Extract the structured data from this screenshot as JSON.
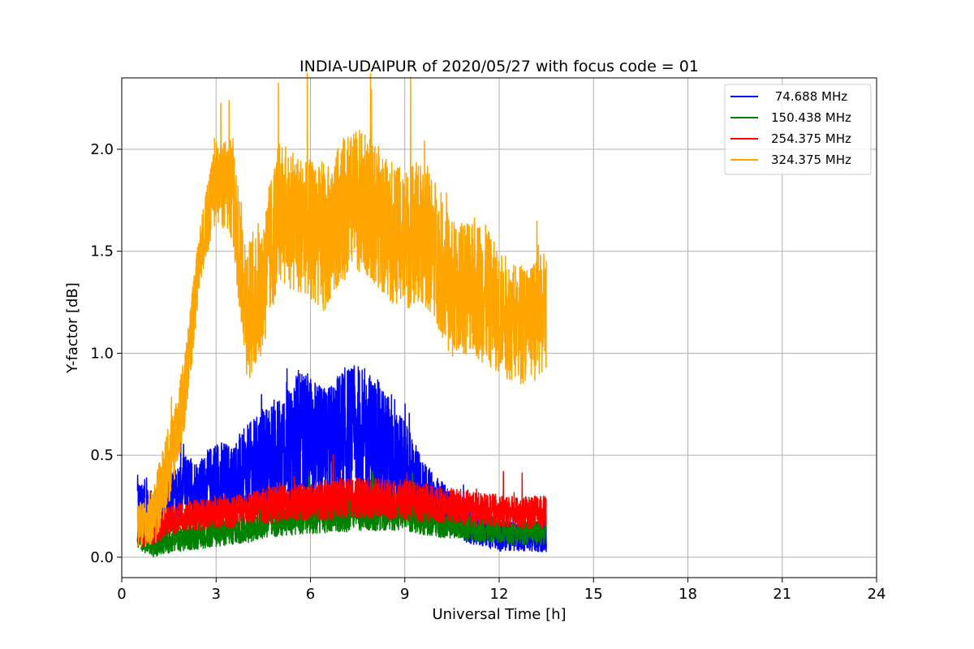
{
  "chart_data": {
    "type": "line",
    "title": "INDIA-UDAIPUR of 2020/05/27 with focus code = 01",
    "xlabel": "Universal Time [h]",
    "ylabel": "Y-factor [dB]",
    "xlim": [
      0,
      24
    ],
    "ylim": [
      -0.1,
      2.35
    ],
    "xticks": [
      0,
      3,
      6,
      9,
      12,
      15,
      18,
      21,
      24
    ],
    "xtick_labels": [
      "0",
      "3",
      "6",
      "9",
      "12",
      "15",
      "18",
      "21",
      "24"
    ],
    "yticks": [
      0.0,
      0.5,
      1.0,
      1.5,
      2.0
    ],
    "ytick_labels": [
      "0.0",
      "0.5",
      "1.0",
      "1.5",
      "2.0"
    ],
    "grid": true,
    "legend_position": "top-right",
    "x": [
      0.5,
      1.0,
      1.5,
      2.0,
      2.5,
      3.0,
      3.5,
      4.0,
      4.5,
      5.0,
      5.5,
      6.0,
      6.5,
      7.0,
      7.5,
      8.0,
      8.5,
      9.0,
      9.5,
      10.0,
      10.5,
      11.0,
      11.5,
      12.0,
      12.5,
      13.0,
      13.5
    ],
    "series": [
      {
        "name": " 74.688 MHz",
        "color": "#0000ff",
        "values": [
          0.3,
          0.22,
          0.28,
          0.35,
          0.33,
          0.38,
          0.36,
          0.4,
          0.45,
          0.5,
          0.55,
          0.55,
          0.52,
          0.58,
          0.6,
          0.55,
          0.5,
          0.42,
          0.32,
          0.28,
          0.22,
          0.15,
          0.13,
          0.11,
          0.1,
          0.1,
          0.12
        ],
        "noise": [
          0.08,
          0.1,
          0.12,
          0.15,
          0.15,
          0.2,
          0.2,
          0.25,
          0.28,
          0.3,
          0.35,
          0.35,
          0.3,
          0.35,
          0.35,
          0.35,
          0.3,
          0.25,
          0.18,
          0.12,
          0.1,
          0.08,
          0.08,
          0.08,
          0.07,
          0.07,
          0.1
        ]
      },
      {
        "name": "150.438 MHz",
        "color": "#008000",
        "values": [
          0.1,
          0.06,
          0.08,
          0.1,
          0.11,
          0.12,
          0.13,
          0.15,
          0.17,
          0.18,
          0.2,
          0.2,
          0.21,
          0.22,
          0.23,
          0.23,
          0.23,
          0.22,
          0.2,
          0.18,
          0.16,
          0.15,
          0.14,
          0.13,
          0.12,
          0.12,
          0.12
        ],
        "noise": [
          0.06,
          0.06,
          0.06,
          0.07,
          0.07,
          0.07,
          0.07,
          0.08,
          0.08,
          0.08,
          0.09,
          0.09,
          0.09,
          0.1,
          0.1,
          0.1,
          0.1,
          0.09,
          0.09,
          0.08,
          0.07,
          0.07,
          0.07,
          0.06,
          0.06,
          0.06,
          0.06
        ]
      },
      {
        "name": "254.375 MHz",
        "color": "#ff0000",
        "values": [
          0.12,
          0.13,
          0.18,
          0.2,
          0.21,
          0.22,
          0.22,
          0.24,
          0.25,
          0.26,
          0.27,
          0.27,
          0.28,
          0.29,
          0.29,
          0.29,
          0.28,
          0.28,
          0.27,
          0.26,
          0.25,
          0.24,
          0.23,
          0.23,
          0.22,
          0.22,
          0.22
        ],
        "noise": [
          0.07,
          0.07,
          0.07,
          0.08,
          0.08,
          0.08,
          0.08,
          0.08,
          0.09,
          0.09,
          0.09,
          0.09,
          0.1,
          0.1,
          0.1,
          0.1,
          0.1,
          0.1,
          0.1,
          0.09,
          0.09,
          0.09,
          0.08,
          0.08,
          0.08,
          0.08,
          0.08
        ]
      },
      {
        "name": "324.375 MHz",
        "color": "#ffa500",
        "values": [
          0.15,
          0.2,
          0.45,
          0.8,
          1.5,
          1.85,
          1.8,
          1.2,
          1.35,
          1.7,
          1.65,
          1.6,
          1.55,
          1.7,
          1.75,
          1.7,
          1.6,
          1.55,
          1.6,
          1.5,
          1.3,
          1.35,
          1.3,
          1.2,
          1.15,
          1.15,
          1.2
        ],
        "noise": [
          0.1,
          0.15,
          0.2,
          0.2,
          0.15,
          0.2,
          0.25,
          0.35,
          0.35,
          0.35,
          0.35,
          0.35,
          0.35,
          0.35,
          0.35,
          0.35,
          0.35,
          0.35,
          0.35,
          0.35,
          0.35,
          0.35,
          0.35,
          0.3,
          0.3,
          0.3,
          0.3
        ]
      }
    ]
  }
}
